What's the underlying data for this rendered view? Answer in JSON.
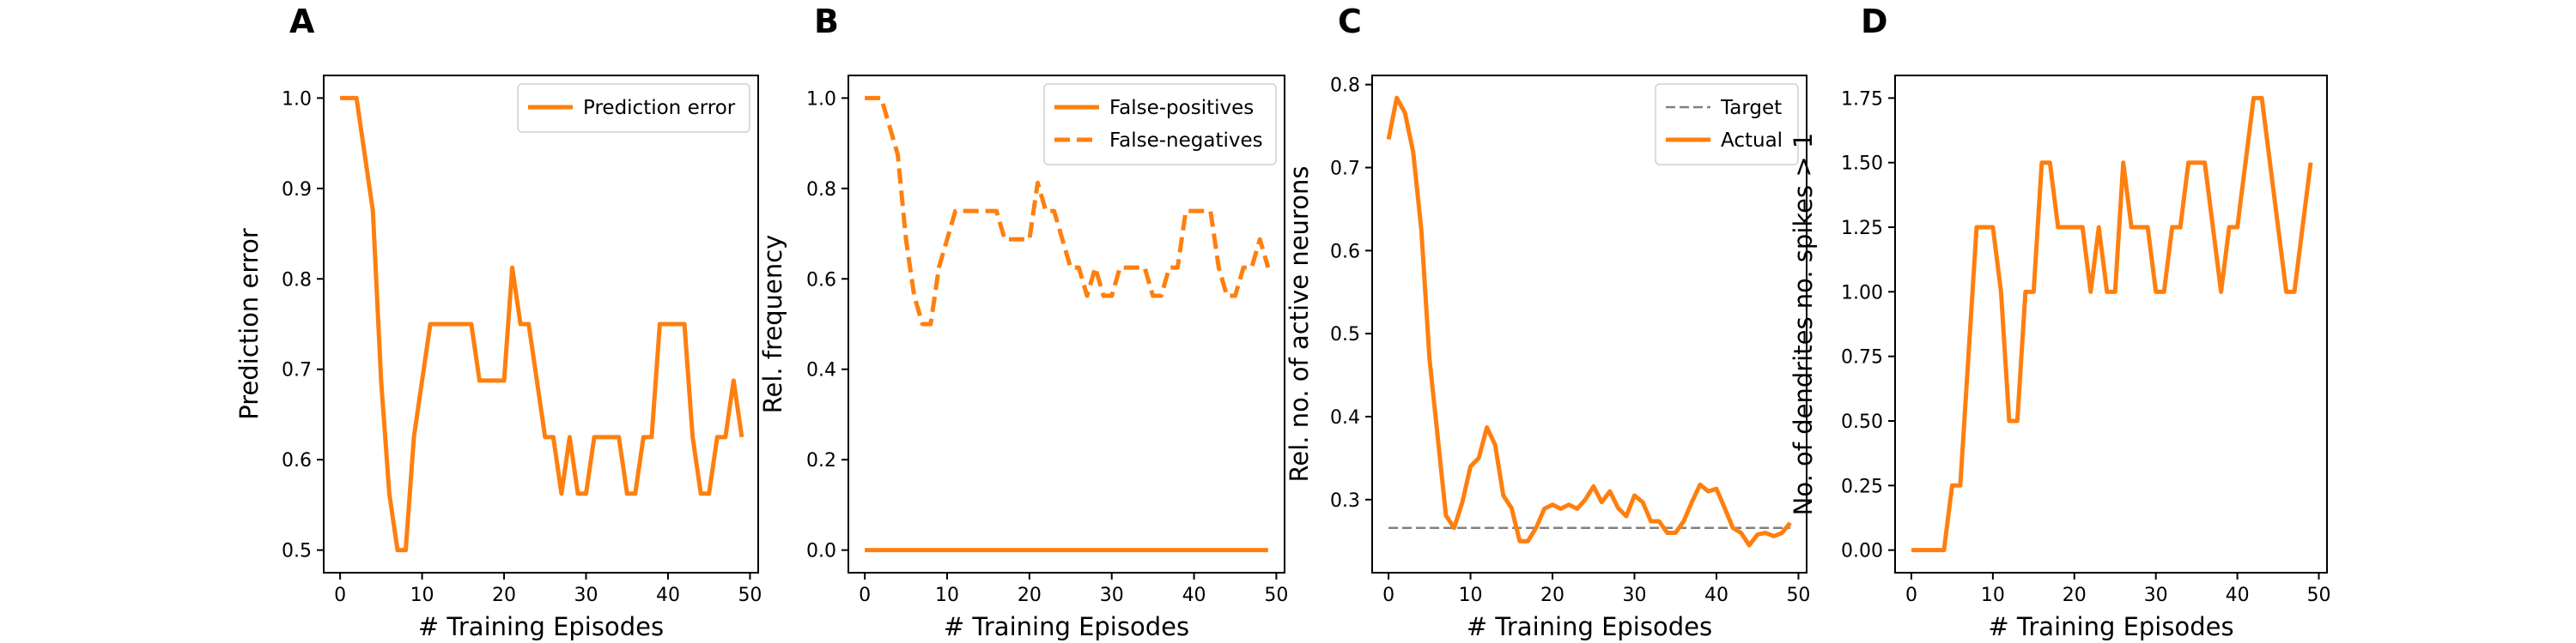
{
  "chart_data": [
    {
      "panel": "A",
      "type": "line",
      "xlabel": "# Training Episodes",
      "ylabel": "Prediction error",
      "xlim": [
        -2,
        51
      ],
      "ylim": [
        0.475,
        1.025
      ],
      "xticks": [
        0,
        10,
        20,
        30,
        40,
        50
      ],
      "yticks": [
        0.5,
        0.6,
        0.7,
        0.8,
        0.9,
        1.0
      ],
      "ytick_labels": [
        "0.5",
        "0.6",
        "0.7",
        "0.8",
        "0.9",
        "1.0"
      ],
      "legend": "top-right",
      "series": [
        {
          "name": "Prediction error",
          "color": "#ff7f0e",
          "style": "solid",
          "x": [
            0,
            1,
            2,
            3,
            4,
            5,
            6,
            7,
            8,
            9,
            10,
            11,
            12,
            13,
            14,
            15,
            16,
            17,
            18,
            19,
            20,
            21,
            22,
            23,
            24,
            25,
            26,
            27,
            28,
            29,
            30,
            31,
            32,
            33,
            34,
            35,
            36,
            37,
            38,
            39,
            40,
            41,
            42,
            43,
            44,
            45,
            46,
            47,
            48,
            49
          ],
          "y": [
            1.0,
            1.0,
            1.0,
            0.9375,
            0.875,
            0.6875,
            0.5625,
            0.5,
            0.5,
            0.625,
            0.6875,
            0.75,
            0.75,
            0.75,
            0.75,
            0.75,
            0.75,
            0.6875,
            0.6875,
            0.6875,
            0.6875,
            0.8125,
            0.75,
            0.75,
            0.6875,
            0.625,
            0.625,
            0.5625,
            0.625,
            0.5625,
            0.5625,
            0.625,
            0.625,
            0.625,
            0.625,
            0.5625,
            0.5625,
            0.625,
            0.625,
            0.75,
            0.75,
            0.75,
            0.75,
            0.625,
            0.5625,
            0.5625,
            0.625,
            0.625,
            0.6875,
            0.625
          ]
        }
      ]
    },
    {
      "panel": "B",
      "type": "line",
      "xlabel": "# Training Episodes",
      "ylabel": "Rel. frequency",
      "xlim": [
        -2,
        51
      ],
      "ylim": [
        -0.05,
        1.05
      ],
      "xticks": [
        0,
        10,
        20,
        30,
        40,
        50
      ],
      "yticks": [
        0.0,
        0.2,
        0.4,
        0.6,
        0.8,
        1.0
      ],
      "ytick_labels": [
        "0.0",
        "0.2",
        "0.4",
        "0.6",
        "0.8",
        "1.0"
      ],
      "legend": "top-right",
      "series": [
        {
          "name": "False-positives",
          "color": "#ff7f0e",
          "style": "solid",
          "x": [
            0,
            49
          ],
          "y": [
            0.0,
            0.0
          ]
        },
        {
          "name": "False-negatives",
          "color": "#ff7f0e",
          "style": "dashed",
          "x": [
            0,
            1,
            2,
            3,
            4,
            5,
            6,
            7,
            8,
            9,
            10,
            11,
            12,
            13,
            14,
            15,
            16,
            17,
            18,
            19,
            20,
            21,
            22,
            23,
            24,
            25,
            26,
            27,
            28,
            29,
            30,
            31,
            32,
            33,
            34,
            35,
            36,
            37,
            38,
            39,
            40,
            41,
            42,
            43,
            44,
            45,
            46,
            47,
            48,
            49
          ],
          "y": [
            1.0,
            1.0,
            1.0,
            0.9375,
            0.875,
            0.6875,
            0.5625,
            0.5,
            0.5,
            0.625,
            0.6875,
            0.75,
            0.75,
            0.75,
            0.75,
            0.75,
            0.75,
            0.6875,
            0.6875,
            0.6875,
            0.6875,
            0.8125,
            0.75,
            0.75,
            0.6875,
            0.625,
            0.625,
            0.5625,
            0.625,
            0.5625,
            0.5625,
            0.625,
            0.625,
            0.625,
            0.625,
            0.5625,
            0.5625,
            0.625,
            0.625,
            0.75,
            0.75,
            0.75,
            0.75,
            0.625,
            0.5625,
            0.5625,
            0.625,
            0.625,
            0.6875,
            0.625
          ]
        }
      ]
    },
    {
      "panel": "C",
      "type": "line",
      "xlabel": "# Training Episodes",
      "ylabel": "Rel. no. of active neurons",
      "xlim": [
        -2,
        51
      ],
      "ylim": [
        0.212,
        0.811
      ],
      "xticks": [
        0,
        10,
        20,
        30,
        40,
        50
      ],
      "yticks": [
        0.3,
        0.4,
        0.5,
        0.6,
        0.7,
        0.8
      ],
      "ytick_labels": [
        "0.3",
        "0.4",
        "0.5",
        "0.6",
        "0.7",
        "0.8"
      ],
      "legend": "top-right",
      "series": [
        {
          "name": "Target",
          "color": "#808080",
          "style": "dashed",
          "x": [
            0,
            49
          ],
          "y": [
            0.266,
            0.266
          ]
        },
        {
          "name": "Actual",
          "color": "#ff7f0e",
          "style": "solid",
          "x": [
            0,
            1,
            2,
            3,
            4,
            5,
            6,
            7,
            8,
            9,
            10,
            11,
            12,
            13,
            14,
            15,
            16,
            17,
            18,
            19,
            20,
            21,
            22,
            23,
            24,
            25,
            26,
            27,
            28,
            29,
            30,
            31,
            32,
            33,
            34,
            35,
            36,
            37,
            38,
            39,
            40,
            41,
            42,
            43,
            44,
            45,
            46,
            47,
            48,
            49
          ],
          "y": [
            0.734,
            0.784,
            0.766,
            0.719,
            0.625,
            0.469,
            0.375,
            0.281,
            0.266,
            0.297,
            0.34,
            0.35,
            0.387,
            0.366,
            0.305,
            0.29,
            0.25,
            0.25,
            0.266,
            0.289,
            0.294,
            0.289,
            0.294,
            0.289,
            0.3,
            0.316,
            0.297,
            0.31,
            0.29,
            0.28,
            0.305,
            0.297,
            0.274,
            0.274,
            0.26,
            0.26,
            0.274,
            0.297,
            0.318,
            0.31,
            0.313,
            0.29,
            0.266,
            0.26,
            0.245,
            0.258,
            0.26,
            0.256,
            0.26,
            0.272
          ]
        }
      ]
    },
    {
      "panel": "D",
      "type": "line",
      "xlabel": "# Training Episodes",
      "ylabel": "No. of dendrites no. spikes > 1",
      "xlim": [
        -2,
        51
      ],
      "ylim": [
        -0.0875,
        1.8375
      ],
      "xticks": [
        0,
        10,
        20,
        30,
        40,
        50
      ],
      "yticks": [
        0.0,
        0.25,
        0.5,
        0.75,
        1.0,
        1.25,
        1.5,
        1.75
      ],
      "ytick_labels": [
        "0.00",
        "0.25",
        "0.50",
        "0.75",
        "1.00",
        "1.25",
        "1.50",
        "1.75"
      ],
      "legend": "none",
      "series": [
        {
          "name": "",
          "color": "#ff7f0e",
          "style": "solid",
          "x": [
            0,
            1,
            2,
            3,
            4,
            5,
            6,
            7,
            8,
            9,
            10,
            11,
            12,
            13,
            14,
            15,
            16,
            17,
            18,
            19,
            20,
            21,
            22,
            23,
            24,
            25,
            26,
            27,
            28,
            29,
            30,
            31,
            32,
            33,
            34,
            35,
            36,
            37,
            38,
            39,
            40,
            41,
            42,
            43,
            44,
            45,
            46,
            47,
            48,
            49
          ],
          "y": [
            0.0,
            0.0,
            0.0,
            0.0,
            0.0,
            0.25,
            0.25,
            0.75,
            1.25,
            1.25,
            1.25,
            1.0,
            0.5,
            0.5,
            1.0,
            1.0,
            1.5,
            1.5,
            1.25,
            1.25,
            1.25,
            1.25,
            1.0,
            1.25,
            1.0,
            1.0,
            1.5,
            1.25,
            1.25,
            1.25,
            1.0,
            1.0,
            1.25,
            1.25,
            1.5,
            1.5,
            1.5,
            1.25,
            1.0,
            1.25,
            1.25,
            1.5,
            1.75,
            1.75,
            1.5,
            1.25,
            1.0,
            1.0,
            1.25,
            1.5
          ]
        }
      ]
    }
  ]
}
